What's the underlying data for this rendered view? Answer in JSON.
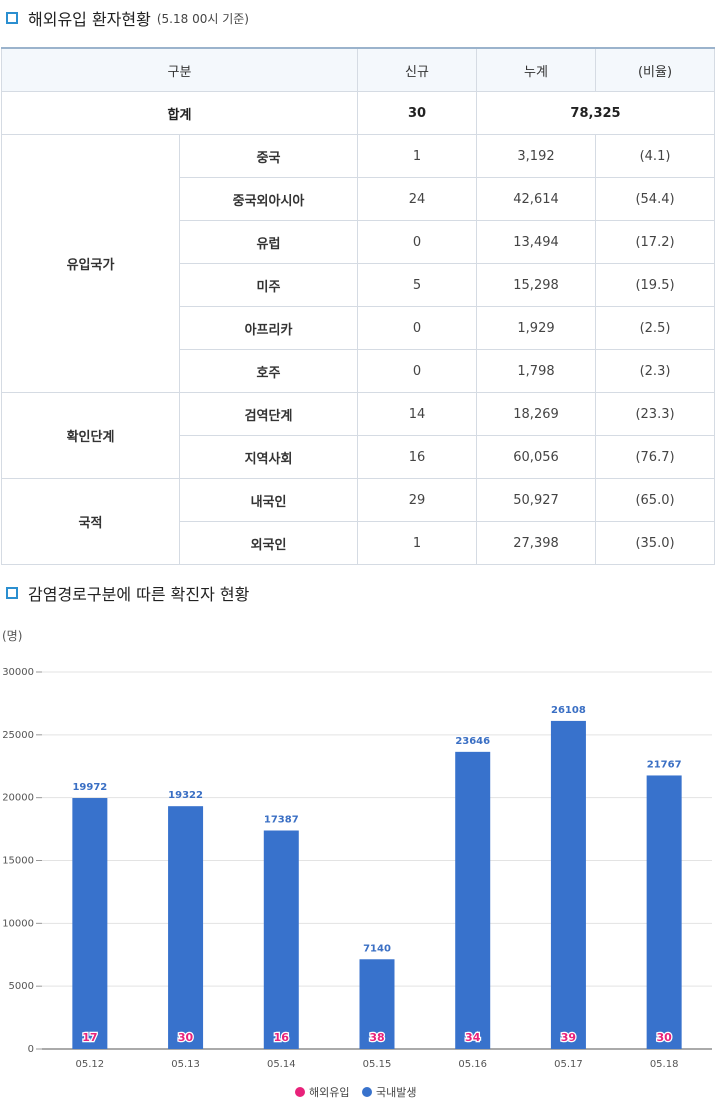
{
  "section1": {
    "title": "해외유입 환자현황",
    "subtitle": "(5.18 00시 기준)"
  },
  "table": {
    "headers": [
      "구분",
      "신규",
      "누계",
      "(비율)"
    ],
    "total": {
      "label": "합계",
      "new": "30",
      "cumulative": "78,325"
    },
    "groups": [
      {
        "name": "유입국가",
        "rows": [
          {
            "label": "중국",
            "new": "1",
            "cumulative": "3,192",
            "ratio": "(4.1)"
          },
          {
            "label": "중국외아시아",
            "new": "24",
            "cumulative": "42,614",
            "ratio": "(54.4)"
          },
          {
            "label": "유럽",
            "new": "0",
            "cumulative": "13,494",
            "ratio": "(17.2)"
          },
          {
            "label": "미주",
            "new": "5",
            "cumulative": "15,298",
            "ratio": "(19.5)"
          },
          {
            "label": "아프리카",
            "new": "0",
            "cumulative": "1,929",
            "ratio": "(2.5)"
          },
          {
            "label": "호주",
            "new": "0",
            "cumulative": "1,798",
            "ratio": "(2.3)"
          }
        ]
      },
      {
        "name": "확인단계",
        "rows": [
          {
            "label": "검역단계",
            "new": "14",
            "cumulative": "18,269",
            "ratio": "(23.3)"
          },
          {
            "label": "지역사회",
            "new": "16",
            "cumulative": "60,056",
            "ratio": "(76.7)"
          }
        ]
      },
      {
        "name": "국적",
        "rows": [
          {
            "label": "내국인",
            "new": "29",
            "cumulative": "50,927",
            "ratio": "(65.0)"
          },
          {
            "label": "외국인",
            "new": "1",
            "cumulative": "27,398",
            "ratio": "(35.0)"
          }
        ]
      }
    ]
  },
  "section2": {
    "title": "감염경로구분에 따른 확진자 현황"
  },
  "chart_data": {
    "type": "bar",
    "unit_label": "(명)",
    "categories": [
      "05.12",
      "05.13",
      "05.14",
      "05.15",
      "05.16",
      "05.17",
      "05.18"
    ],
    "series": [
      {
        "name": "해외유입",
        "values": [
          17,
          30,
          16,
          38,
          34,
          39,
          30
        ],
        "color": "#e8227a"
      },
      {
        "name": "국내발생",
        "values": [
          19972,
          19322,
          17387,
          7140,
          23646,
          26108,
          21767
        ],
        "color": "#3872cc"
      }
    ],
    "ylim": [
      0,
      30000
    ],
    "yticks": [
      0,
      5000,
      10000,
      15000,
      20000,
      25000,
      30000
    ],
    "grid": true,
    "legend": "bottom-center"
  }
}
